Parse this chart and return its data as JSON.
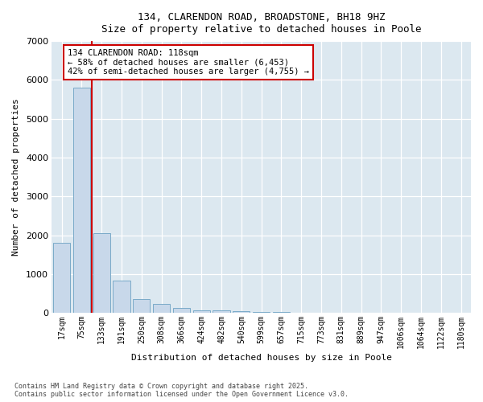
{
  "title_line1": "134, CLARENDON ROAD, BROADSTONE, BH18 9HZ",
  "title_line2": "Size of property relative to detached houses in Poole",
  "xlabel": "Distribution of detached houses by size in Poole",
  "ylabel": "Number of detached properties",
  "categories": [
    "17sqm",
    "75sqm",
    "133sqm",
    "191sqm",
    "250sqm",
    "308sqm",
    "366sqm",
    "424sqm",
    "482sqm",
    "540sqm",
    "599sqm",
    "657sqm",
    "715sqm",
    "773sqm",
    "831sqm",
    "889sqm",
    "947sqm",
    "1006sqm",
    "1064sqm",
    "1122sqm",
    "1180sqm"
  ],
  "values": [
    1800,
    5800,
    2050,
    830,
    360,
    230,
    120,
    70,
    70,
    40,
    25,
    20,
    0,
    0,
    0,
    0,
    0,
    0,
    0,
    0,
    0
  ],
  "bar_color": "#c8d8ea",
  "bar_edge_color": "#7aaac8",
  "vline_color": "#cc0000",
  "vline_pos": 1.5,
  "annotation_title": "134 CLARENDON ROAD: 118sqm",
  "annotation_line2": "← 58% of detached houses are smaller (6,453)",
  "annotation_line3": "42% of semi-detached houses are larger (4,755) →",
  "annotation_box_edgecolor": "#cc0000",
  "annotation_bg": "#ffffff",
  "ylim": [
    0,
    7000
  ],
  "yticks": [
    0,
    1000,
    2000,
    3000,
    4000,
    5000,
    6000,
    7000
  ],
  "fig_bg_color": "#ffffff",
  "plot_bg_color": "#dce8f0",
  "footer_line1": "Contains HM Land Registry data © Crown copyright and database right 2025.",
  "footer_line2": "Contains public sector information licensed under the Open Government Licence v3.0."
}
